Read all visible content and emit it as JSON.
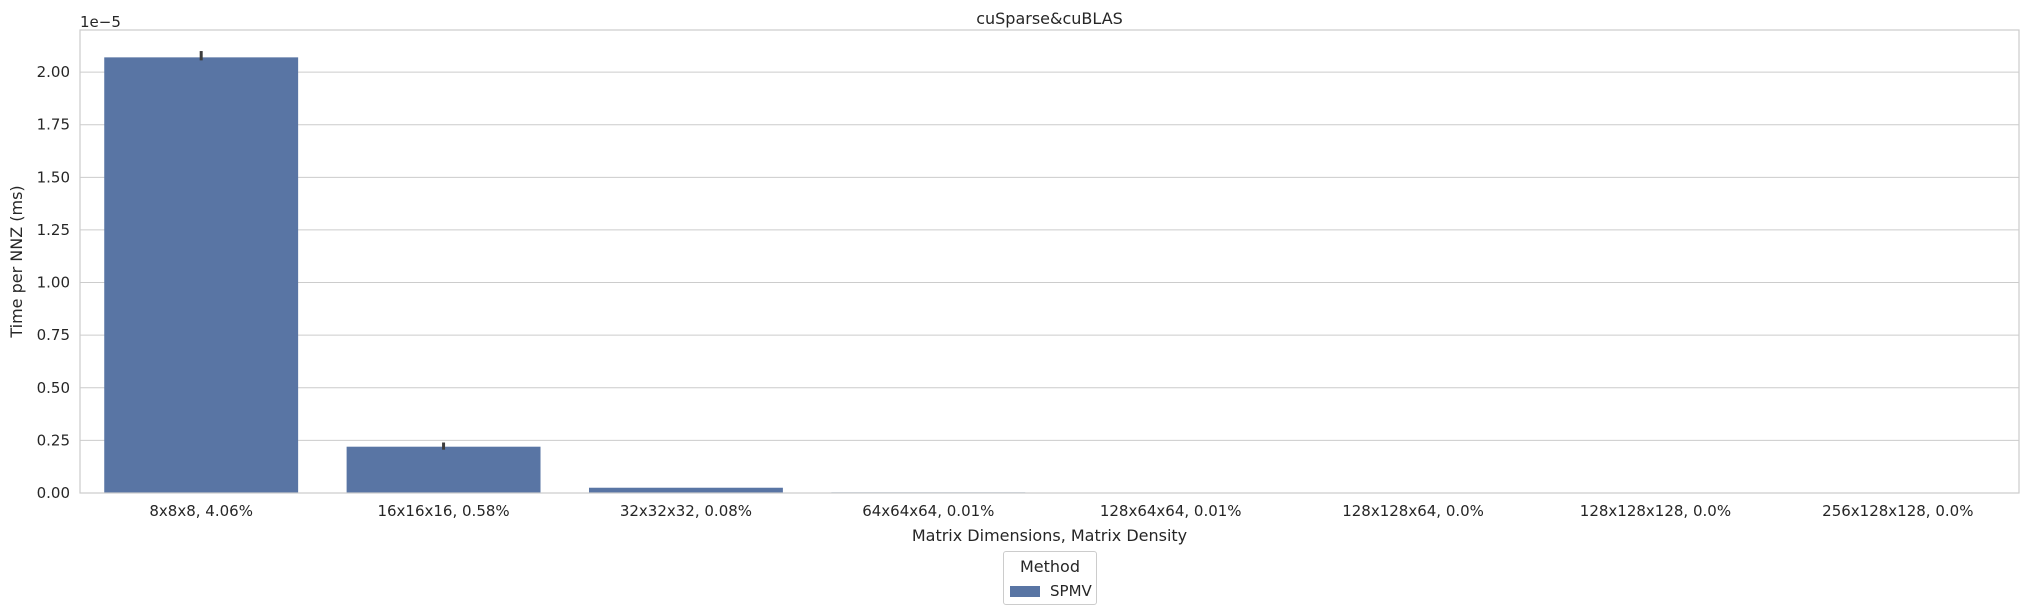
{
  "chart_data": {
    "type": "bar",
    "title": "cuSparse&cuBLAS",
    "xlabel": "Matrix Dimensions, Matrix Density",
    "ylabel": "Time per NNZ (ms)",
    "y_offset_text": "1e−5",
    "y_scale": 1e-05,
    "ylim": [
      0,
      2.2
    ],
    "y_ticks": [
      "0.00",
      "0.25",
      "0.50",
      "0.75",
      "1.00",
      "1.25",
      "1.50",
      "1.75",
      "2.00"
    ],
    "categories": [
      "8x8x8, 4.06%",
      "16x16x16, 0.58%",
      "32x32x32, 0.08%",
      "64x64x64, 0.01%",
      "128x64x64, 0.01%",
      "128x128x64, 0.0%",
      "128x128x128, 0.0%",
      "256x128x128, 0.0%"
    ],
    "series": [
      {
        "name": "SPMV",
        "values": [
          2.07,
          0.22,
          0.025,
          0.003,
          0.002,
          0.001,
          0.0008,
          0.0005
        ],
        "error_upper": [
          2.1,
          0.24,
          null,
          null,
          null,
          null,
          null,
          null
        ],
        "color": "#5975a4"
      }
    ],
    "grid": true,
    "legend": {
      "title": "Method",
      "placement": "bottom-center, below axes"
    }
  }
}
